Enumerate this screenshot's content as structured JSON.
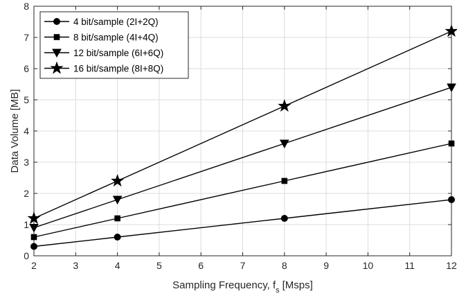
{
  "chart_data": {
    "type": "line",
    "xlabel": "Sampling Frequency, f",
    "xlabel_subscript": "s",
    "xlabel_unit": "[Msps]",
    "ylabel": "Data Volume [MB]",
    "xlim": [
      2,
      12
    ],
    "ylim": [
      0,
      8
    ],
    "xticks": [
      2,
      3,
      4,
      5,
      6,
      7,
      8,
      9,
      10,
      11,
      12
    ],
    "yticks": [
      0,
      1,
      2,
      3,
      4,
      5,
      6,
      7,
      8
    ],
    "grid": true,
    "legend_position": "top-left",
    "x": [
      2,
      4,
      8,
      12
    ],
    "series": [
      {
        "name": "4 bit/sample (2I+2Q)",
        "marker": "circle",
        "values": [
          0.3,
          0.6,
          1.2,
          1.8
        ]
      },
      {
        "name": "8 bit/sample (4I+4Q)",
        "marker": "square",
        "values": [
          0.6,
          1.2,
          2.4,
          3.6
        ]
      },
      {
        "name": "12 bit/sample (6I+6Q)",
        "marker": "triangle-down",
        "values": [
          0.9,
          1.8,
          3.6,
          5.4
        ]
      },
      {
        "name": "16 bit/sample (8I+8Q)",
        "marker": "star",
        "values": [
          1.2,
          2.4,
          4.8,
          7.2
        ]
      }
    ]
  }
}
